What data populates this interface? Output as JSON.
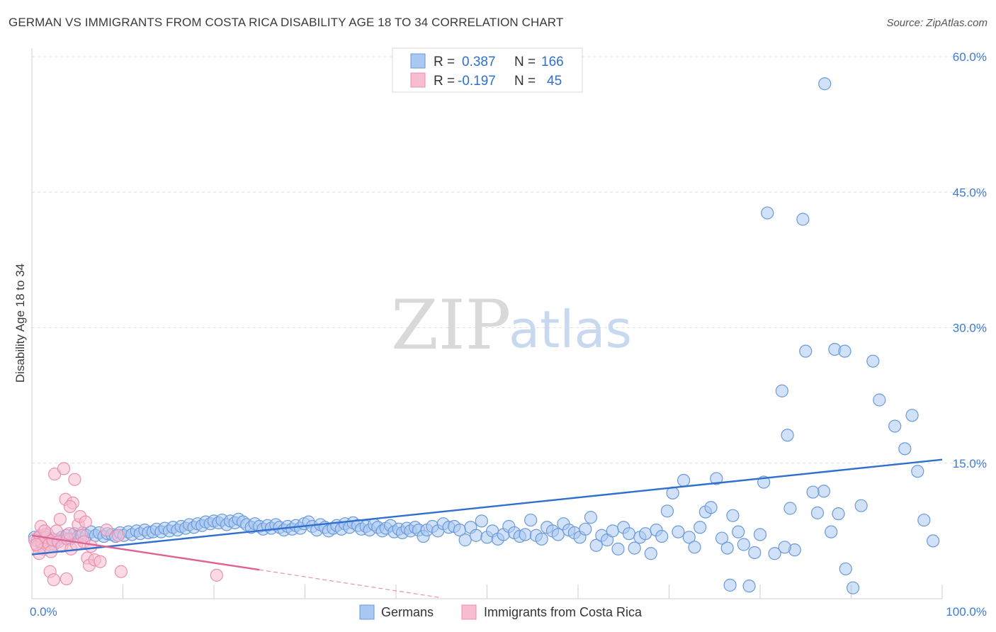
{
  "header": {
    "title": "GERMAN VS IMMIGRANTS FROM COSTA RICA DISABILITY AGE 18 TO 34 CORRELATION CHART",
    "source": "Source: ZipAtlas.com"
  },
  "watermark": {
    "zip": "ZIP",
    "atlas": "atlas"
  },
  "legend": {
    "r_label": "R =",
    "n_label": "N =",
    "rows": [
      {
        "r": "0.387",
        "n": "166",
        "color": "#a9c8f2",
        "stroke": "#6a9ad8"
      },
      {
        "r": "-0.197",
        "n": "45",
        "color": "#f7bcd0",
        "stroke": "#e890b0"
      }
    ]
  },
  "bottom_legend": [
    "Germans",
    "Immigrants from Costa Rica"
  ],
  "chart_data": {
    "type": "scatter",
    "ylabel": "Disability Age 18 to 34",
    "xlim": [
      0,
      100
    ],
    "ylim": [
      0,
      60
    ],
    "x_tick_labels": [
      "0.0%",
      "100.0%"
    ],
    "y_ticks": [
      15,
      30,
      45,
      60
    ],
    "y_tick_labels": [
      "15.0%",
      "30.0%",
      "45.0%",
      "60.0%"
    ],
    "grid": true,
    "legend_position": "top-center",
    "series": [
      {
        "name": "Germans",
        "color": "#a9c8f2",
        "stroke": "#6a9ad8",
        "line_color": "#2f6fce",
        "trend": [
          [
            0,
            4.9
          ],
          [
            100,
            15.4
          ]
        ],
        "points": [
          [
            0.3,
            6.8
          ],
          [
            0.6,
            6.4
          ],
          [
            0.9,
            6.9
          ],
          [
            1.2,
            6.5
          ],
          [
            1.5,
            7.1
          ],
          [
            1.8,
            6.3
          ],
          [
            2.1,
            6.7
          ],
          [
            2.4,
            6.0
          ],
          [
            2.8,
            6.5
          ],
          [
            3.3,
            6.8
          ],
          [
            3.8,
            7.0
          ],
          [
            4.2,
            6.6
          ],
          [
            4.7,
            7.2
          ],
          [
            5.1,
            6.9
          ],
          [
            5.6,
            7.3
          ],
          [
            6.0,
            7.0
          ],
          [
            6.5,
            7.4
          ],
          [
            7.0,
            7.0
          ],
          [
            7.4,
            7.3
          ],
          [
            7.9,
            6.9
          ],
          [
            8.3,
            7.2
          ],
          [
            8.8,
            7.1
          ],
          [
            9.2,
            6.9
          ],
          [
            9.7,
            7.3
          ],
          [
            10.1,
            7.0
          ],
          [
            10.6,
            7.4
          ],
          [
            11.0,
            7.1
          ],
          [
            11.5,
            7.5
          ],
          [
            11.9,
            7.2
          ],
          [
            12.4,
            7.6
          ],
          [
            12.8,
            7.3
          ],
          [
            13.3,
            7.4
          ],
          [
            13.7,
            7.7
          ],
          [
            14.2,
            7.4
          ],
          [
            14.6,
            7.8
          ],
          [
            15.1,
            7.5
          ],
          [
            15.5,
            7.9
          ],
          [
            16.0,
            7.6
          ],
          [
            16.4,
            8.0
          ],
          [
            16.9,
            7.8
          ],
          [
            17.3,
            8.2
          ],
          [
            17.8,
            7.9
          ],
          [
            18.2,
            8.3
          ],
          [
            18.7,
            8.1
          ],
          [
            19.1,
            8.5
          ],
          [
            19.6,
            8.3
          ],
          [
            20.0,
            8.6
          ],
          [
            20.5,
            8.4
          ],
          [
            20.9,
            8.7
          ],
          [
            21.4,
            8.2
          ],
          [
            21.8,
            8.6
          ],
          [
            22.3,
            8.4
          ],
          [
            22.7,
            8.8
          ],
          [
            23.2,
            8.5
          ],
          [
            23.6,
            8.2
          ],
          [
            24.1,
            7.9
          ],
          [
            24.5,
            8.3
          ],
          [
            25.0,
            8.0
          ],
          [
            25.4,
            7.7
          ],
          [
            25.9,
            8.1
          ],
          [
            26.3,
            7.8
          ],
          [
            26.8,
            8.2
          ],
          [
            27.2,
            7.9
          ],
          [
            27.7,
            7.6
          ],
          [
            28.1,
            8.0
          ],
          [
            28.6,
            7.7
          ],
          [
            29.0,
            8.1
          ],
          [
            29.5,
            7.8
          ],
          [
            29.9,
            8.3
          ],
          [
            30.4,
            8.5
          ],
          [
            30.8,
            8.0
          ],
          [
            31.3,
            7.6
          ],
          [
            31.7,
            8.2
          ],
          [
            32.2,
            7.9
          ],
          [
            32.6,
            7.5
          ],
          [
            33.1,
            7.8
          ],
          [
            33.5,
            8.1
          ],
          [
            34.0,
            7.7
          ],
          [
            34.4,
            8.3
          ],
          [
            34.9,
            7.9
          ],
          [
            35.3,
            8.4
          ],
          [
            35.8,
            8.1
          ],
          [
            36.2,
            7.7
          ],
          [
            36.7,
            8.0
          ],
          [
            37.1,
            7.6
          ],
          [
            37.6,
            8.2
          ],
          [
            38.0,
            7.9
          ],
          [
            38.5,
            7.5
          ],
          [
            38.9,
            7.8
          ],
          [
            39.4,
            8.1
          ],
          [
            39.8,
            7.4
          ],
          [
            40.3,
            7.7
          ],
          [
            40.7,
            7.3
          ],
          [
            41.2,
            7.8
          ],
          [
            41.6,
            7.5
          ],
          [
            42.1,
            7.9
          ],
          [
            42.5,
            7.6
          ],
          [
            43.0,
            6.9
          ],
          [
            43.4,
            7.6
          ],
          [
            44.0,
            8.0
          ],
          [
            44.6,
            7.5
          ],
          [
            45.2,
            8.3
          ],
          [
            45.8,
            7.9
          ],
          [
            46.4,
            8.0
          ],
          [
            47.0,
            7.6
          ],
          [
            47.6,
            6.5
          ],
          [
            48.2,
            7.9
          ],
          [
            48.8,
            7.0
          ],
          [
            49.4,
            8.6
          ],
          [
            50.0,
            6.8
          ],
          [
            50.6,
            7.5
          ],
          [
            51.2,
            6.6
          ],
          [
            51.8,
            7.1
          ],
          [
            52.4,
            8.0
          ],
          [
            53.0,
            7.3
          ],
          [
            53.6,
            6.9
          ],
          [
            54.2,
            7.1
          ],
          [
            54.8,
            8.7
          ],
          [
            55.4,
            7.0
          ],
          [
            56.0,
            6.6
          ],
          [
            56.6,
            7.9
          ],
          [
            57.2,
            7.5
          ],
          [
            57.8,
            7.1
          ],
          [
            58.4,
            8.3
          ],
          [
            59.0,
            7.6
          ],
          [
            59.6,
            7.3
          ],
          [
            60.2,
            6.8
          ],
          [
            60.8,
            7.7
          ],
          [
            61.4,
            9.0
          ],
          [
            62.0,
            5.9
          ],
          [
            62.6,
            7.0
          ],
          [
            63.2,
            6.5
          ],
          [
            63.8,
            7.5
          ],
          [
            64.4,
            5.5
          ],
          [
            65.0,
            7.9
          ],
          [
            65.6,
            7.2
          ],
          [
            66.2,
            5.6
          ],
          [
            66.8,
            6.8
          ],
          [
            67.4,
            7.2
          ],
          [
            68.0,
            5.0
          ],
          [
            68.6,
            7.6
          ],
          [
            69.2,
            6.9
          ],
          [
            69.8,
            9.7
          ],
          [
            70.4,
            11.7
          ],
          [
            71.0,
            7.4
          ],
          [
            71.6,
            13.1
          ],
          [
            72.2,
            6.8
          ],
          [
            72.8,
            5.7
          ],
          [
            73.4,
            7.9
          ],
          [
            74.0,
            9.6
          ],
          [
            74.6,
            10.1
          ],
          [
            75.2,
            13.3
          ],
          [
            75.8,
            6.7
          ],
          [
            76.4,
            5.6
          ],
          [
            77.0,
            9.2
          ],
          [
            77.6,
            7.4
          ],
          [
            78.2,
            6.0
          ],
          [
            78.8,
            1.4
          ],
          [
            79.4,
            5.1
          ],
          [
            80.0,
            7.1
          ],
          [
            80.4,
            12.9
          ],
          [
            82.4,
            23.0
          ],
          [
            83.0,
            18.1
          ],
          [
            83.8,
            5.4
          ],
          [
            85.0,
            27.4
          ],
          [
            86.3,
            9.5
          ],
          [
            87.0,
            11.9
          ],
          [
            87.8,
            7.4
          ],
          [
            88.6,
            9.4
          ],
          [
            89.4,
            3.3
          ],
          [
            90.2,
            1.2
          ],
          [
            91.1,
            10.3
          ],
          [
            92.4,
            26.3
          ],
          [
            93.1,
            22.0
          ],
          [
            94.8,
            19.1
          ],
          [
            95.9,
            16.6
          ],
          [
            96.7,
            20.3
          ],
          [
            97.3,
            14.1
          ],
          [
            98.0,
            8.7
          ],
          [
            99.0,
            6.4
          ],
          [
            80.8,
            42.7
          ],
          [
            84.7,
            42.0
          ],
          [
            87.1,
            57.0
          ],
          [
            88.2,
            27.6
          ],
          [
            89.3,
            27.4
          ],
          [
            76.7,
            1.5
          ],
          [
            81.6,
            5.0
          ],
          [
            82.7,
            5.7
          ],
          [
            83.3,
            10.0
          ],
          [
            85.8,
            11.8
          ]
        ]
      },
      {
        "name": "Immigrants from Costa Rica",
        "color": "#f7bcd0",
        "stroke": "#e890b0",
        "line_color": "#e06292",
        "trend": [
          [
            0,
            7.0
          ],
          [
            25,
            3.2
          ]
        ],
        "trend_dash": [
          [
            25,
            3.2
          ],
          [
            45,
            0.1
          ]
        ],
        "points": [
          [
            0.3,
            6.5
          ],
          [
            0.6,
            5.8
          ],
          [
            0.9,
            7.0
          ],
          [
            1.1,
            6.2
          ],
          [
            1.3,
            5.5
          ],
          [
            1.5,
            6.8
          ],
          [
            1.7,
            7.2
          ],
          [
            1.9,
            6.0
          ],
          [
            2.1,
            5.2
          ],
          [
            2.3,
            6.5
          ],
          [
            2.5,
            13.8
          ],
          [
            2.7,
            7.5
          ],
          [
            2.9,
            6.3
          ],
          [
            3.1,
            8.8
          ],
          [
            3.3,
            5.8
          ],
          [
            3.5,
            14.4
          ],
          [
            3.7,
            11.0
          ],
          [
            3.9,
            6.6
          ],
          [
            4.1,
            7.2
          ],
          [
            4.3,
            5.5
          ],
          [
            4.5,
            10.6
          ],
          [
            4.7,
            13.2
          ],
          [
            4.9,
            6.0
          ],
          [
            5.1,
            8.2
          ],
          [
            5.3,
            9.1
          ],
          [
            5.5,
            7.0
          ],
          [
            5.7,
            6.3
          ],
          [
            5.9,
            8.5
          ],
          [
            6.1,
            4.5
          ],
          [
            6.3,
            3.7
          ],
          [
            6.5,
            5.8
          ],
          [
            6.9,
            4.3
          ],
          [
            7.5,
            4.1
          ],
          [
            8.2,
            7.6
          ],
          [
            9.5,
            7.0
          ],
          [
            2.0,
            3.0
          ],
          [
            2.4,
            2.1
          ],
          [
            3.8,
            2.2
          ],
          [
            4.2,
            10.2
          ],
          [
            1.0,
            8.0
          ],
          [
            1.4,
            7.5
          ],
          [
            0.8,
            5.0
          ],
          [
            0.5,
            6.0
          ],
          [
            9.8,
            3.0
          ],
          [
            20.3,
            2.6
          ]
        ]
      }
    ]
  }
}
